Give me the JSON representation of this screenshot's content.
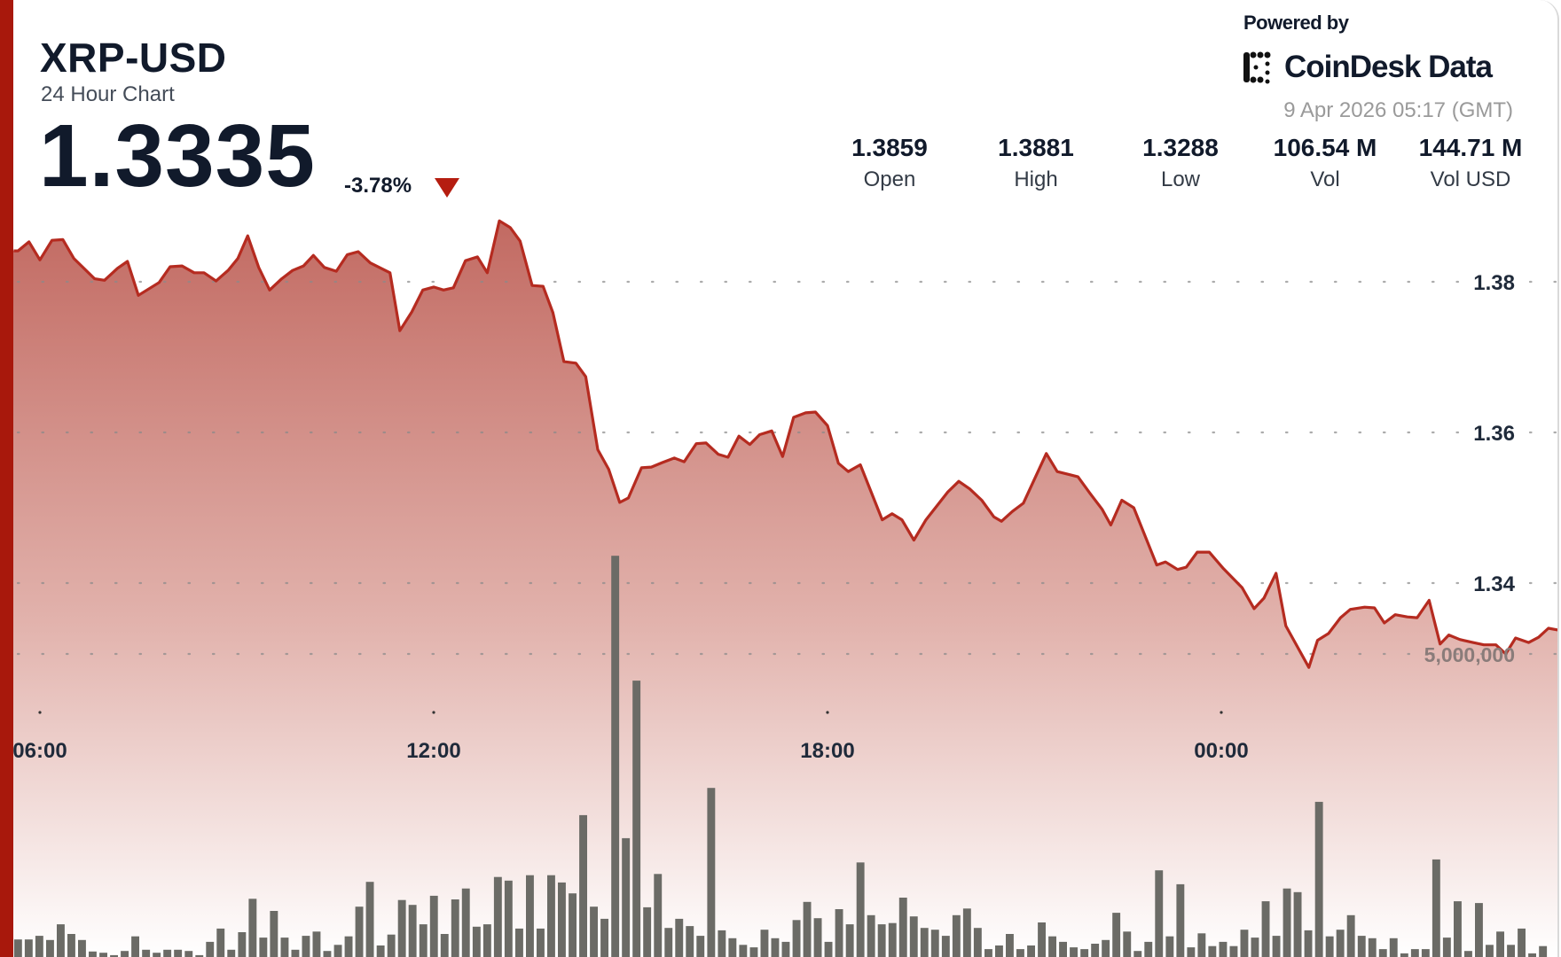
{
  "header": {
    "symbol": "XRP-USD",
    "subtitle": "24 Hour Chart",
    "price": "1.3335",
    "change": "-3.78%",
    "change_direction_icon": "triangle-down-icon"
  },
  "branding": {
    "powered_by": "Powered by",
    "logo_text": "CoinDesk Data",
    "timestamp": "9 Apr 2026 05:17 (GMT)"
  },
  "stats": [
    {
      "value": "1.3859",
      "label": "Open"
    },
    {
      "value": "1.3881",
      "label": "High"
    },
    {
      "value": "1.3288",
      "label": "Low"
    },
    {
      "value": "106.54 M",
      "label": "Vol"
    },
    {
      "value": "144.71 M",
      "label": "Vol USD"
    }
  ],
  "colors": {
    "accent_red": "#a8180c",
    "line": "#b52b20",
    "fill_top": "#c26a62",
    "volume_bar": "#6b6b66",
    "text": "#111a2b"
  },
  "chart_data": {
    "type": "area",
    "title": "",
    "xlabel": "",
    "ylabel": "",
    "x_ticks": [
      "06:00",
      "12:00",
      "18:00",
      "00:00"
    ],
    "y_ticks": [
      "1.38",
      "1.36",
      "1.34"
    ],
    "y_tick_values": [
      1.38,
      1.36,
      1.34
    ],
    "grid": "dotted horizontal",
    "price_series": [
      [
        "05:36",
        1.3841
      ],
      [
        "05:40",
        1.3841
      ],
      [
        "05:50",
        1.3853
      ],
      [
        "06:00",
        1.3829
      ],
      [
        "06:11",
        1.3855
      ],
      [
        "06:21",
        1.3856
      ],
      [
        "06:31",
        1.3831
      ],
      [
        "06:50",
        1.3804
      ],
      [
        "06:59",
        1.3802
      ],
      [
        "07:11",
        1.3818
      ],
      [
        "07:20",
        1.3827
      ],
      [
        "07:30",
        1.3782
      ],
      [
        "07:49",
        1.3799
      ],
      [
        "07:59",
        1.382
      ],
      [
        "08:10",
        1.3821
      ],
      [
        "08:21",
        1.3812
      ],
      [
        "08:30",
        1.3812
      ],
      [
        "08:41",
        1.3801
      ],
      [
        "08:52",
        1.3815
      ],
      [
        "09:01",
        1.3831
      ],
      [
        "09:10",
        1.3861
      ],
      [
        "09:20",
        1.3819
      ],
      [
        "09:30",
        1.3789
      ],
      [
        "09:41",
        1.3804
      ],
      [
        "09:51",
        1.3815
      ],
      [
        "10:01",
        1.3821
      ],
      [
        "10:10",
        1.3835
      ],
      [
        "10:20",
        1.3819
      ],
      [
        "10:31",
        1.3814
      ],
      [
        "10:41",
        1.3836
      ],
      [
        "10:51",
        1.384
      ],
      [
        "11:02",
        1.3825
      ],
      [
        "11:20",
        1.3812
      ],
      [
        "11:29",
        1.3735
      ],
      [
        "11:40",
        1.376
      ],
      [
        "11:50",
        1.3789
      ],
      [
        "12:00",
        1.3793
      ],
      [
        "12:09",
        1.3789
      ],
      [
        "12:18",
        1.3792
      ],
      [
        "12:29",
        1.3828
      ],
      [
        "12:40",
        1.3833
      ],
      [
        "12:49",
        1.3812
      ],
      [
        "13:00",
        1.3881
      ],
      [
        "13:10",
        1.3872
      ],
      [
        "13:19",
        1.3854
      ],
      [
        "13:30",
        1.3795
      ],
      [
        "13:40",
        1.3794
      ],
      [
        "13:49",
        1.3759
      ],
      [
        "13:59",
        1.3694
      ],
      [
        "14:10",
        1.3692
      ],
      [
        "14:19",
        1.3674
      ],
      [
        "14:30",
        1.3577
      ],
      [
        "14:40",
        1.3551
      ],
      [
        "14:50",
        1.3507
      ],
      [
        "14:58",
        1.3513
      ],
      [
        "15:10",
        1.3553
      ],
      [
        "15:19",
        1.3554
      ],
      [
        "15:29",
        1.356
      ],
      [
        "15:40",
        1.3566
      ],
      [
        "15:49",
        1.3561
      ],
      [
        "16:00",
        1.3585
      ],
      [
        "16:09",
        1.3586
      ],
      [
        "16:20",
        1.3571
      ],
      [
        "16:29",
        1.3567
      ],
      [
        "16:39",
        1.3595
      ],
      [
        "16:49",
        1.3584
      ],
      [
        "16:58",
        1.3597
      ],
      [
        "17:09",
        1.3602
      ],
      [
        "17:19",
        1.3568
      ],
      [
        "17:29",
        1.362
      ],
      [
        "17:40",
        1.3626
      ],
      [
        "17:49",
        1.3627
      ],
      [
        "18:00",
        1.3609
      ],
      [
        "18:10",
        1.3559
      ],
      [
        "18:19",
        1.3548
      ],
      [
        "18:30",
        1.3557
      ],
      [
        "18:50",
        1.3484
      ],
      [
        "18:59",
        1.3492
      ],
      [
        "19:08",
        1.3484
      ],
      [
        "19:19",
        1.3457
      ],
      [
        "19:30",
        1.3484
      ],
      [
        "19:50",
        1.3521
      ],
      [
        "20:00",
        1.3535
      ],
      [
        "20:10",
        1.3525
      ],
      [
        "20:21",
        1.351
      ],
      [
        "20:32",
        1.3488
      ],
      [
        "20:39",
        1.3482
      ],
      [
        "20:49",
        1.3495
      ],
      [
        "20:59",
        1.3506
      ],
      [
        "21:20",
        1.3572
      ],
      [
        "21:30",
        1.3548
      ],
      [
        "21:41",
        1.3544
      ],
      [
        "21:49",
        1.3541
      ],
      [
        "22:00",
        1.3519
      ],
      [
        "22:11",
        1.3498
      ],
      [
        "22:19",
        1.3477
      ],
      [
        "22:29",
        1.351
      ],
      [
        "22:40",
        1.35
      ],
      [
        "23:01",
        1.3424
      ],
      [
        "23:09",
        1.3428
      ],
      [
        "23:20",
        1.3418
      ],
      [
        "23:28",
        1.3421
      ],
      [
        "23:38",
        1.3441
      ],
      [
        "23:49",
        1.3441
      ],
      [
        "00:02",
        1.3419
      ],
      [
        "00:19",
        1.3394
      ],
      [
        "00:30",
        1.3366
      ],
      [
        "00:39",
        1.338
      ],
      [
        "00:50",
        1.3413
      ],
      [
        "00:59",
        1.3343
      ],
      [
        "01:20",
        1.3288
      ],
      [
        "01:28",
        1.3324
      ],
      [
        "01:38",
        1.3333
      ],
      [
        "01:49",
        1.3354
      ],
      [
        "01:58",
        1.3365
      ],
      [
        "02:11",
        1.3368
      ],
      [
        "02:20",
        1.3367
      ],
      [
        "02:29",
        1.3347
      ],
      [
        "02:39",
        1.3358
      ],
      [
        "02:50",
        1.3355
      ],
      [
        "02:59",
        1.3354
      ],
      [
        "03:10",
        1.3377
      ],
      [
        "03:20",
        1.3319
      ],
      [
        "03:28",
        1.3331
      ],
      [
        "03:38",
        1.3325
      ],
      [
        "03:50",
        1.3321
      ],
      [
        "04:00",
        1.3318
      ],
      [
        "04:11",
        1.3318
      ],
      [
        "04:20",
        1.3306
      ],
      [
        "04:29",
        1.3327
      ],
      [
        "04:41",
        1.3321
      ],
      [
        "04:50",
        1.3328
      ],
      [
        "04:59",
        1.334
      ],
      [
        "05:10",
        1.3337
      ]
    ],
    "volume": {
      "tick_label": "5,000,000",
      "tick_value_millions": 5,
      "first_bar": "05:40",
      "last_bar": "04:54",
      "values_millions": [
        0.29,
        0.29,
        0.35,
        0.28,
        0.54,
        0.38,
        0.28,
        0.09,
        0.07,
        0.03,
        0.1,
        0.34,
        0.12,
        0.07,
        0.12,
        0.12,
        0.1,
        0.03,
        0.25,
        0.47,
        0.12,
        0.41,
        0.96,
        0.32,
        0.76,
        0.32,
        0.12,
        0.35,
        0.42,
        0.1,
        0.2,
        0.34,
        0.83,
        1.24,
        0.19,
        0.37,
        0.94,
        0.86,
        0.54,
        1.01,
        0.38,
        0.95,
        1.13,
        0.5,
        0.54,
        1.32,
        1.26,
        0.47,
        1.35,
        0.47,
        1.35,
        1.23,
        1.05,
        2.34,
        0.83,
        0.63,
        6.62,
        1.96,
        4.56,
        0.82,
        1.37,
        0.48,
        0.63,
        0.51,
        0.35,
        2.79,
        0.44,
        0.31,
        0.2,
        0.16,
        0.45,
        0.31,
        0.25,
        0.61,
        0.91,
        0.64,
        0.25,
        0.79,
        0.54,
        1.56,
        0.69,
        0.54,
        0.56,
        0.98,
        0.67,
        0.48,
        0.45,
        0.35,
        0.69,
        0.8,
        0.48,
        0.13,
        0.19,
        0.38,
        0.13,
        0.19,
        0.57,
        0.34,
        0.25,
        0.16,
        0.13,
        0.22,
        0.28,
        0.73,
        0.42,
        0.1,
        0.25,
        1.43,
        0.34,
        1.2,
        0.16,
        0.39,
        0.18,
        0.25,
        0.18,
        0.45,
        0.32,
        0.92,
        0.35,
        1.13,
        1.07,
        0.44,
        2.56,
        0.34,
        0.45,
        0.69,
        0.35,
        0.31,
        0.13,
        0.31,
        0.06,
        0.13,
        0.13,
        1.61,
        0.32,
        0.92,
        0.1,
        0.89,
        0.2,
        0.42,
        0.2,
        0.47,
        0.06,
        0.18
      ]
    }
  }
}
